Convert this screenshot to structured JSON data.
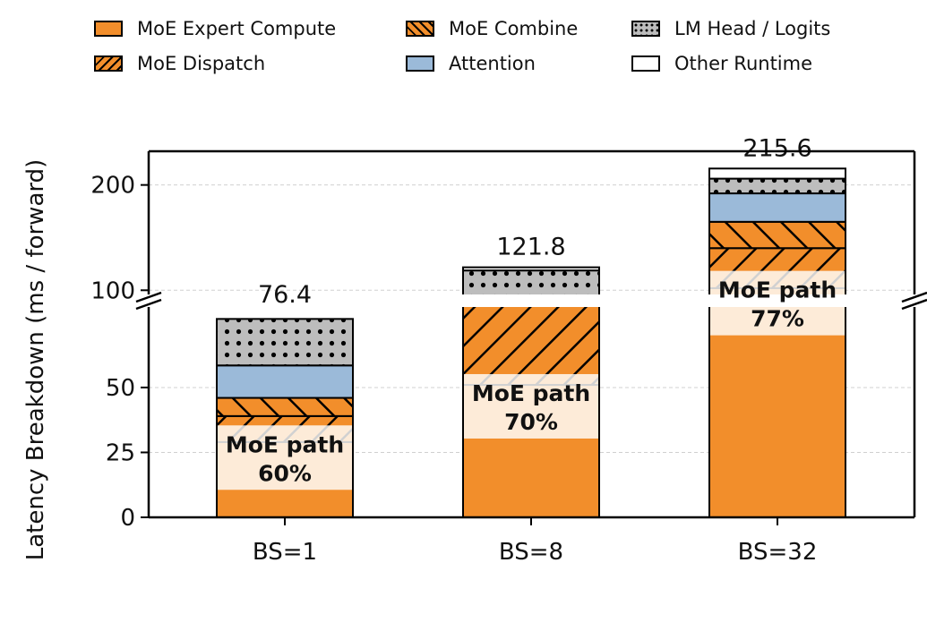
{
  "legend": {
    "expert": "MoE Expert Compute",
    "dispatch": "MoE Dispatch",
    "combine": "MoE Combine",
    "attention": "Attention",
    "lm_head": "LM Head / Logits",
    "other": "Other Runtime"
  },
  "chart_data": {
    "type": "bar",
    "stacked": true,
    "broken_y_axis": true,
    "lower_ylim": [
      0,
      81
    ],
    "upper_ylim": [
      96,
      232
    ],
    "ylabel": "Latency Breakdown (ms / forward)",
    "categories": [
      "BS=1",
      "BS=8",
      "BS=32"
    ],
    "yticks_lower": [
      0,
      25,
      50
    ],
    "yticks_upper": [
      100,
      200
    ],
    "series": [
      {
        "name": "MoE Expert Compute",
        "key": "expert",
        "color": "#f28e2b",
        "values": [
          29,
          51,
          102
        ]
      },
      {
        "name": "MoE Dispatch",
        "key": "dispatch",
        "color": "#f28e2b",
        "values": [
          10,
          34,
          38
        ]
      },
      {
        "name": "MoE Combine",
        "key": "combine",
        "color": "#f28e2b",
        "values": [
          7,
          0.5,
          25
        ]
      },
      {
        "name": "Attention",
        "key": "attention",
        "color": "#9bbad9",
        "values": [
          12.5,
          8,
          27
        ]
      },
      {
        "name": "LM Head / Logits",
        "key": "lm_head",
        "color": "#bdbdbd",
        "values": [
          17.9,
          25.3,
          14
        ]
      },
      {
        "name": "Other Runtime",
        "key": "other",
        "color": "#ffffff",
        "values": [
          0,
          3,
          9.6
        ]
      }
    ],
    "totals": [
      "76.4",
      "121.8",
      "215.6"
    ],
    "moe_path_label": "MoE path",
    "moe_path_shares": [
      "60%",
      "70%",
      "77%"
    ],
    "grid": true,
    "legend_position": "top"
  }
}
